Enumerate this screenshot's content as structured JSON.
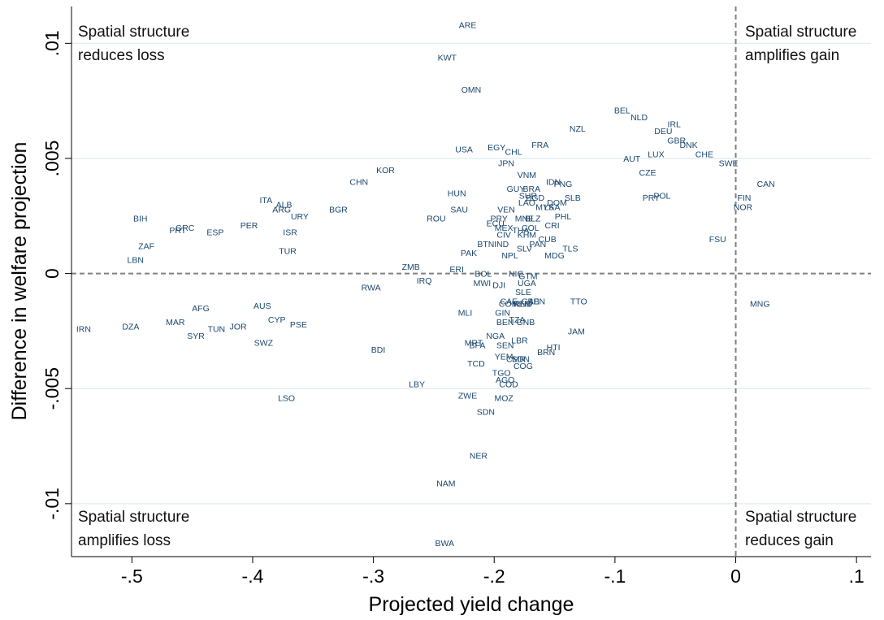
{
  "chart_data": {
    "type": "scatter",
    "xlabel": "Projected yield change",
    "ylabel": "Difference in welfare projection",
    "xlim": [
      -0.55,
      0.112
    ],
    "ylim": [
      -0.0123,
      0.0116
    ],
    "xticks": [
      -0.5,
      -0.4,
      -0.3,
      -0.2,
      -0.1,
      0,
      0.1
    ],
    "xtick_labels": [
      "-.5",
      "-.4",
      "-.3",
      "-.2",
      "-.1",
      "0",
      ".1"
    ],
    "yticks": [
      -0.01,
      -0.005,
      0,
      0.005,
      0.01
    ],
    "ytick_labels": [
      "-.01",
      "-.005",
      "0",
      ".005",
      ".01"
    ],
    "grid": "horizontal",
    "reference_lines": {
      "x": 0,
      "y": 0
    },
    "quadrant_labels": [
      {
        "position": "top-left",
        "lines": [
          "Spatial structure",
          "reduces loss"
        ]
      },
      {
        "position": "top-right",
        "lines": [
          "Spatial structure",
          "amplifies gain"
        ]
      },
      {
        "position": "bottom-left",
        "lines": [
          "Spatial structure",
          "amplifies loss"
        ]
      },
      {
        "position": "bottom-right",
        "lines": [
          "Spatial structure",
          "reduces gain"
        ]
      }
    ],
    "points": [
      {
        "label": "ARE",
        "x": -0.222,
        "y": 0.0108
      },
      {
        "label": "KWT",
        "x": -0.239,
        "y": 0.0094
      },
      {
        "label": "OMN",
        "x": -0.219,
        "y": 0.008
      },
      {
        "label": "BEL",
        "x": -0.094,
        "y": 0.0071
      },
      {
        "label": "NLD",
        "x": -0.08,
        "y": 0.0068
      },
      {
        "label": "IRL",
        "x": -0.051,
        "y": 0.0065
      },
      {
        "label": "NZL",
        "x": -0.131,
        "y": 0.0063
      },
      {
        "label": "DEU",
        "x": -0.06,
        "y": 0.0062
      },
      {
        "label": "GBR",
        "x": -0.049,
        "y": 0.0058
      },
      {
        "label": "DNK",
        "x": -0.039,
        "y": 0.0056
      },
      {
        "label": "FRA",
        "x": -0.162,
        "y": 0.0056
      },
      {
        "label": "EGY",
        "x": -0.198,
        "y": 0.0055
      },
      {
        "label": "USA",
        "x": -0.225,
        "y": 0.0054
      },
      {
        "label": "CHL",
        "x": -0.184,
        "y": 0.0053
      },
      {
        "label": "LUX",
        "x": -0.066,
        "y": 0.0052
      },
      {
        "label": "CHE",
        "x": -0.026,
        "y": 0.0052
      },
      {
        "label": "AUT",
        "x": -0.086,
        "y": 0.005
      },
      {
        "label": "JPN",
        "x": -0.19,
        "y": 0.0048
      },
      {
        "label": "SWE",
        "x": -0.006,
        "y": 0.0048
      },
      {
        "label": "KOR",
        "x": -0.29,
        "y": 0.0045
      },
      {
        "label": "CZE",
        "x": -0.073,
        "y": 0.0044
      },
      {
        "label": "VNM",
        "x": -0.173,
        "y": 0.0043
      },
      {
        "label": "CHN",
        "x": -0.312,
        "y": 0.004
      },
      {
        "label": "IDN",
        "x": -0.151,
        "y": 0.004
      },
      {
        "label": "PNG",
        "x": -0.143,
        "y": 0.0039
      },
      {
        "label": "CAN",
        "x": 0.025,
        "y": 0.0039
      },
      {
        "label": "GUY",
        "x": -0.182,
        "y": 0.0037
      },
      {
        "label": "BRA",
        "x": -0.169,
        "y": 0.0037
      },
      {
        "label": "HUN",
        "x": -0.231,
        "y": 0.0035
      },
      {
        "label": "SUR",
        "x": -0.172,
        "y": 0.0034
      },
      {
        "label": "POL",
        "x": -0.061,
        "y": 0.0034
      },
      {
        "label": "BGD",
        "x": -0.166,
        "y": 0.0033
      },
      {
        "label": "PRY",
        "x": -0.07,
        "y": 0.0033
      },
      {
        "label": "FIN",
        "x": 0.007,
        "y": 0.0033
      },
      {
        "label": "SLB",
        "x": -0.135,
        "y": 0.0033
      },
      {
        "label": "ITA",
        "x": -0.389,
        "y": 0.0032
      },
      {
        "label": "LAO",
        "x": -0.173,
        "y": 0.0031
      },
      {
        "label": "DOM",
        "x": -0.148,
        "y": 0.0031
      },
      {
        "label": "ALB",
        "x": -0.374,
        "y": 0.003
      },
      {
        "label": "MYS",
        "x": -0.158,
        "y": 0.0029
      },
      {
        "label": "LKA",
        "x": -0.152,
        "y": 0.0029
      },
      {
        "label": "NOR",
        "x": 0.006,
        "y": 0.0029
      },
      {
        "label": "ARG",
        "x": -0.376,
        "y": 0.0028
      },
      {
        "label": "BGR",
        "x": -0.329,
        "y": 0.0028
      },
      {
        "label": "SAU",
        "x": -0.229,
        "y": 0.0028
      },
      {
        "label": "VEN",
        "x": -0.19,
        "y": 0.0028
      },
      {
        "label": "URY",
        "x": -0.361,
        "y": 0.0025
      },
      {
        "label": "BIH",
        "x": -0.493,
        "y": 0.0024
      },
      {
        "label": "ROU",
        "x": -0.248,
        "y": 0.0024
      },
      {
        "label": "PHL",
        "x": -0.143,
        "y": 0.0025
      },
      {
        "label": "PRY",
        "x": -0.196,
        "y": 0.0024
      },
      {
        "label": "MNE",
        "x": -0.175,
        "y": 0.0024
      },
      {
        "label": "BLZ",
        "x": -0.168,
        "y": 0.0024
      },
      {
        "label": "ECU",
        "x": -0.199,
        "y": 0.0022
      },
      {
        "label": "CRI",
        "x": -0.152,
        "y": 0.0021
      },
      {
        "label": "PER",
        "x": -0.403,
        "y": 0.0021
      },
      {
        "label": "GRC",
        "x": -0.456,
        "y": 0.002
      },
      {
        "label": "PRT",
        "x": -0.462,
        "y": 0.0019
      },
      {
        "label": "MEX",
        "x": -0.192,
        "y": 0.002
      },
      {
        "label": "COL",
        "x": -0.17,
        "y": 0.002
      },
      {
        "label": "ESP",
        "x": -0.431,
        "y": 0.0018
      },
      {
        "label": "THA",
        "x": -0.178,
        "y": 0.0019
      },
      {
        "label": "ISR",
        "x": -0.369,
        "y": 0.0018
      },
      {
        "label": "KHM",
        "x": -0.173,
        "y": 0.0017
      },
      {
        "label": "CIV",
        "x": -0.192,
        "y": 0.0017
      },
      {
        "label": "CUB",
        "x": -0.156,
        "y": 0.0015
      },
      {
        "label": "FSU",
        "x": -0.015,
        "y": 0.0015
      },
      {
        "label": "BTN",
        "x": -0.207,
        "y": 0.0013
      },
      {
        "label": "IND",
        "x": -0.194,
        "y": 0.0013
      },
      {
        "label": "PAN",
        "x": -0.164,
        "y": 0.0013
      },
      {
        "label": "TLS",
        "x": -0.137,
        "y": 0.0011
      },
      {
        "label": "ZAF",
        "x": -0.488,
        "y": 0.0012
      },
      {
        "label": "SLV",
        "x": -0.175,
        "y": 0.0011
      },
      {
        "label": "TUR",
        "x": -0.371,
        "y": 0.001
      },
      {
        "label": "PAK",
        "x": -0.221,
        "y": 0.0009
      },
      {
        "label": "NPL",
        "x": -0.187,
        "y": 0.0008
      },
      {
        "label": "MDG",
        "x": -0.15,
        "y": 0.0008
      },
      {
        "label": "LBN",
        "x": -0.497,
        "y": 0.0006
      },
      {
        "label": "ZMB",
        "x": -0.269,
        "y": 0.0003
      },
      {
        "label": "ERI",
        "x": -0.231,
        "y": 0.0002
      },
      {
        "label": "BOL",
        "x": -0.209,
        "y": 0.0
      },
      {
        "label": "NIC",
        "x": -0.182,
        "y": 0.0
      },
      {
        "label": "IRQ",
        "x": -0.258,
        "y": -0.0003
      },
      {
        "label": "GTM",
        "x": -0.172,
        "y": -0.0001
      },
      {
        "label": "MWI",
        "x": -0.21,
        "y": -0.0004
      },
      {
        "label": "DJI",
        "x": -0.196,
        "y": -0.0005
      },
      {
        "label": "UGA",
        "x": -0.173,
        "y": -0.0004
      },
      {
        "label": "RWA",
        "x": -0.302,
        "y": -0.0006
      },
      {
        "label": "SLE",
        "x": -0.176,
        "y": -0.0008
      },
      {
        "label": "CAF",
        "x": -0.188,
        "y": -0.0012
      },
      {
        "label": "GAB",
        "x": -0.17,
        "y": -0.0012
      },
      {
        "label": "BEN",
        "x": -0.165,
        "y": -0.0012
      },
      {
        "label": "TTO",
        "x": -0.13,
        "y": -0.0012
      },
      {
        "label": "KEN",
        "x": -0.177,
        "y": -0.0013
      },
      {
        "label": "COM",
        "x": -0.188,
        "y": -0.0013
      },
      {
        "label": "RND",
        "x": -0.176,
        "y": -0.0013
      },
      {
        "label": "MNG",
        "x": 0.02,
        "y": -0.0013
      },
      {
        "label": "AFG",
        "x": -0.443,
        "y": -0.0015
      },
      {
        "label": "AUS",
        "x": -0.392,
        "y": -0.0014
      },
      {
        "label": "MLI",
        "x": -0.224,
        "y": -0.0017
      },
      {
        "label": "GIN",
        "x": -0.193,
        "y": -0.0017
      },
      {
        "label": "CYP",
        "x": -0.38,
        "y": -0.002
      },
      {
        "label": "PSE",
        "x": -0.362,
        "y": -0.0022
      },
      {
        "label": "MAR",
        "x": -0.464,
        "y": -0.0021
      },
      {
        "label": "BEN",
        "x": -0.191,
        "y": -0.0021
      },
      {
        "label": "TZA",
        "x": -0.181,
        "y": -0.002
      },
      {
        "label": "GNB",
        "x": -0.174,
        "y": -0.0021
      },
      {
        "label": "DZA",
        "x": -0.501,
        "y": -0.0023
      },
      {
        "label": "JOR",
        "x": -0.412,
        "y": -0.0023
      },
      {
        "label": "TUN",
        "x": -0.43,
        "y": -0.0024
      },
      {
        "label": "IRN",
        "x": -0.54,
        "y": -0.0024
      },
      {
        "label": "JAM",
        "x": -0.132,
        "y": -0.0025
      },
      {
        "label": "SYR",
        "x": -0.447,
        "y": -0.0027
      },
      {
        "label": "NGA",
        "x": -0.199,
        "y": -0.0027
      },
      {
        "label": "LBR",
        "x": -0.179,
        "y": -0.0029
      },
      {
        "label": "SWZ",
        "x": -0.391,
        "y": -0.003
      },
      {
        "label": "MRT",
        "x": -0.217,
        "y": -0.003
      },
      {
        "label": "BFA",
        "x": -0.214,
        "y": -0.0031
      },
      {
        "label": "SEN",
        "x": -0.191,
        "y": -0.0031
      },
      {
        "label": "HTI",
        "x": -0.151,
        "y": -0.0032
      },
      {
        "label": "BDI",
        "x": -0.296,
        "y": -0.0033
      },
      {
        "label": "BRN",
        "x": -0.157,
        "y": -0.0034
      },
      {
        "label": "YEM",
        "x": -0.192,
        "y": -0.0036
      },
      {
        "label": "CMR",
        "x": -0.182,
        "y": -0.0037
      },
      {
        "label": "SDN",
        "x": -0.178,
        "y": -0.0037
      },
      {
        "label": "TCD",
        "x": -0.215,
        "y": -0.0039
      },
      {
        "label": "COG",
        "x": -0.176,
        "y": -0.004
      },
      {
        "label": "TGO",
        "x": -0.194,
        "y": -0.0043
      },
      {
        "label": "AGO",
        "x": -0.191,
        "y": -0.0046
      },
      {
        "label": "COD",
        "x": -0.188,
        "y": -0.0048
      },
      {
        "label": "LBY",
        "x": -0.264,
        "y": -0.0048
      },
      {
        "label": "ZWE",
        "x": -0.222,
        "y": -0.0053
      },
      {
        "label": "MOZ",
        "x": -0.192,
        "y": -0.0054
      },
      {
        "label": "LSO",
        "x": -0.372,
        "y": -0.0054
      },
      {
        "label": "SDN",
        "x": -0.207,
        "y": -0.006
      },
      {
        "label": "NER",
        "x": -0.213,
        "y": -0.0079
      },
      {
        "label": "NAM",
        "x": -0.24,
        "y": -0.0091
      },
      {
        "label": "BWA",
        "x": -0.241,
        "y": -0.0117
      }
    ]
  }
}
